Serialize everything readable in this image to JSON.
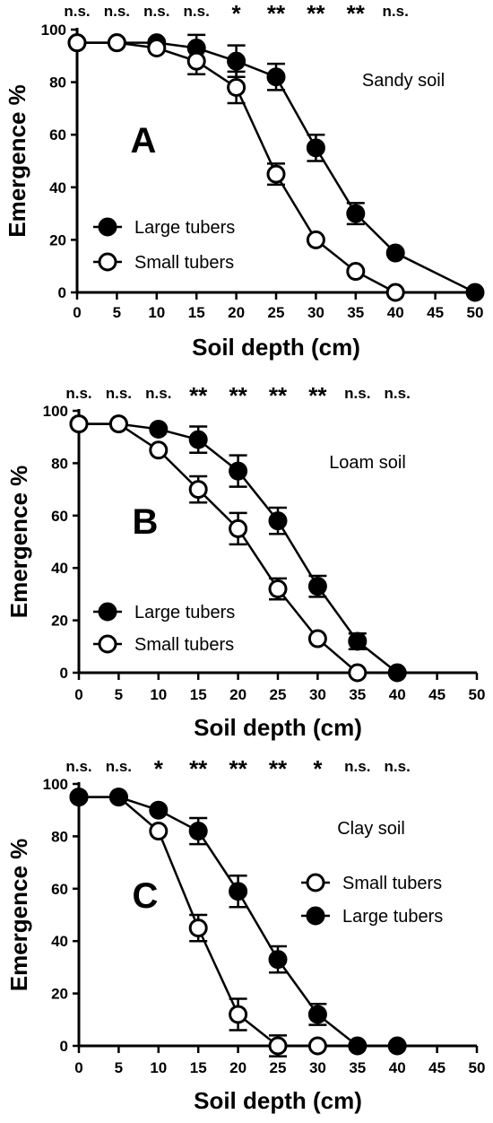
{
  "chart_data": [
    {
      "type": "line",
      "panel_label": "A",
      "note": "Sandy soil",
      "xlabel": "Soil depth (cm)",
      "ylabel": "Emergence %",
      "xlim": [
        0,
        50
      ],
      "ylim": [
        0,
        100
      ],
      "xticks": [
        0,
        5,
        10,
        15,
        20,
        25,
        30,
        35,
        40,
        45,
        50
      ],
      "yticks": [
        0,
        20,
        40,
        60,
        80,
        100
      ],
      "significance": [
        "n.s.",
        "n.s.",
        "n.s.",
        "n.s.",
        "*",
        "**",
        "**",
        "**",
        "n.s."
      ],
      "legend_position": "lower-left",
      "series": [
        {
          "name": "Large tubers",
          "marker": "filled",
          "x": [
            0,
            5,
            10,
            15,
            20,
            25,
            30,
            35,
            40,
            50
          ],
          "y": [
            95,
            95,
            95,
            93,
            88,
            82,
            55,
            30,
            15,
            0
          ],
          "err": [
            0,
            0,
            0,
            5,
            6,
            5,
            5,
            4,
            0,
            0
          ]
        },
        {
          "name": "Small tubers",
          "marker": "open",
          "x": [
            0,
            5,
            10,
            15,
            20,
            25,
            30,
            35,
            40
          ],
          "y": [
            95,
            95,
            93,
            88,
            78,
            45,
            20,
            8,
            0
          ],
          "err": [
            0,
            0,
            0,
            5,
            6,
            4,
            0,
            0,
            0
          ]
        }
      ]
    },
    {
      "type": "line",
      "panel_label": "B",
      "note": "Loam soil",
      "xlabel": "Soil depth (cm)",
      "ylabel": "Emergence %",
      "xlim": [
        0,
        50
      ],
      "ylim": [
        0,
        100
      ],
      "xticks": [
        0,
        5,
        10,
        15,
        20,
        25,
        30,
        35,
        40,
        45,
        50
      ],
      "yticks": [
        0,
        20,
        40,
        60,
        80,
        100
      ],
      "significance": [
        "n.s.",
        "n.s.",
        "n.s.",
        "**",
        "**",
        "**",
        "**",
        "n.s.",
        "n.s."
      ],
      "legend_position": "lower-left",
      "series": [
        {
          "name": "Large tubers",
          "marker": "filled",
          "x": [
            0,
            5,
            10,
            15,
            20,
            25,
            30,
            35,
            40
          ],
          "y": [
            95,
            95,
            93,
            89,
            77,
            58,
            33,
            12,
            0
          ],
          "err": [
            0,
            0,
            0,
            5,
            6,
            5,
            4,
            3,
            0
          ]
        },
        {
          "name": "Small tubers",
          "marker": "open",
          "x": [
            0,
            5,
            10,
            15,
            20,
            25,
            30,
            35
          ],
          "y": [
            95,
            95,
            85,
            70,
            55,
            32,
            13,
            0
          ],
          "err": [
            0,
            0,
            0,
            5,
            6,
            4,
            0,
            0
          ]
        }
      ]
    },
    {
      "type": "line",
      "panel_label": "C",
      "note": "Clay soil",
      "xlabel": "Soil depth (cm)",
      "ylabel": "Emergence %",
      "xlim": [
        0,
        50
      ],
      "ylim": [
        0,
        100
      ],
      "xticks": [
        0,
        5,
        10,
        15,
        20,
        25,
        30,
        35,
        40,
        45,
        50
      ],
      "yticks": [
        0,
        20,
        40,
        60,
        80,
        100
      ],
      "significance": [
        "n.s.",
        "n.s.",
        "*",
        "**",
        "**",
        "**",
        "*",
        "n.s.",
        "n.s."
      ],
      "legend_position": "right",
      "series": [
        {
          "name": "Small tubers",
          "marker": "open",
          "x": [
            0,
            5,
            10,
            15,
            20,
            25,
            30
          ],
          "y": [
            95,
            95,
            82,
            45,
            12,
            0,
            0
          ],
          "err": [
            0,
            0,
            0,
            5,
            6,
            4,
            0
          ]
        },
        {
          "name": "Large tubers",
          "marker": "filled",
          "x": [
            0,
            5,
            10,
            15,
            20,
            25,
            30,
            35,
            40
          ],
          "y": [
            95,
            95,
            90,
            82,
            59,
            33,
            12,
            0,
            0
          ],
          "err": [
            0,
            0,
            0,
            5,
            6,
            5,
            4,
            0,
            0
          ]
        }
      ]
    }
  ]
}
